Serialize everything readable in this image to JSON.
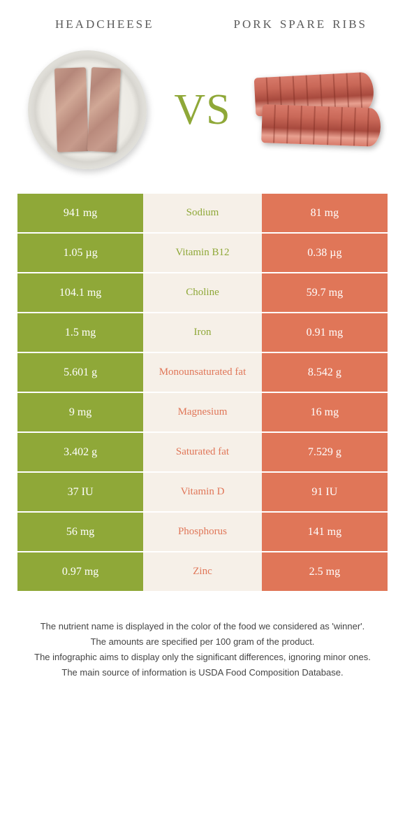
{
  "food_left": {
    "title": "headcheese"
  },
  "food_right": {
    "title": "pork spare ribs"
  },
  "vs_label": "VS",
  "colors": {
    "left": "#8fa838",
    "right": "#e07658",
    "mid_bg": "#f6f0e8",
    "label_left": "#8fa838",
    "label_right": "#e07658"
  },
  "rows": [
    {
      "left": "941 mg",
      "label": "Sodium",
      "right": "81 mg",
      "winner": "left"
    },
    {
      "left": "1.05 µg",
      "label": "Vitamin B12",
      "right": "0.38 µg",
      "winner": "left"
    },
    {
      "left": "104.1 mg",
      "label": "Choline",
      "right": "59.7 mg",
      "winner": "left"
    },
    {
      "left": "1.5 mg",
      "label": "Iron",
      "right": "0.91 mg",
      "winner": "left"
    },
    {
      "left": "5.601 g",
      "label": "Monounsaturated fat",
      "right": "8.542 g",
      "winner": "right"
    },
    {
      "left": "9 mg",
      "label": "Magnesium",
      "right": "16 mg",
      "winner": "right"
    },
    {
      "left": "3.402 g",
      "label": "Saturated fat",
      "right": "7.529 g",
      "winner": "right"
    },
    {
      "left": "37 IU",
      "label": "Vitamin D",
      "right": "91 IU",
      "winner": "right"
    },
    {
      "left": "56 mg",
      "label": "Phosphorus",
      "right": "141 mg",
      "winner": "right"
    },
    {
      "left": "0.97 mg",
      "label": "Zinc",
      "right": "2.5 mg",
      "winner": "right"
    }
  ],
  "footer": {
    "line1": "The nutrient name is displayed in the color of the food we considered as 'winner'.",
    "line2": "The amounts are specified per 100 gram of the product.",
    "line3": "The infographic aims to display only the significant differences, ignoring minor ones.",
    "line4": "The main source of information is USDA Food Composition Database."
  }
}
